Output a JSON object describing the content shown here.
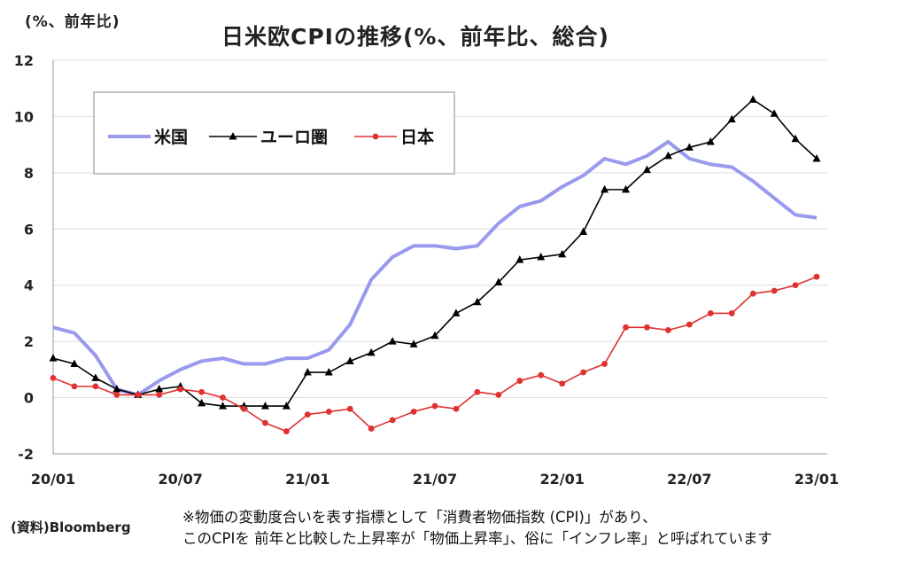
{
  "unit_label": "(%、前年比)",
  "source": "(資料)Bloomberg",
  "footnote": {
    "line1": "※物価の変動度合いを表す指標として「消費者物価指数 (CPI)」があり、",
    "line2": "このCPIを 前年と比較した上昇率が「物価上昇率」、俗に「インフレ率」と呼ばれています"
  },
  "chart_data": {
    "type": "line",
    "title": "日米欧CPIの推移(%、前年比、総合)",
    "xlabel": "",
    "ylabel": "",
    "ylim": [
      -2,
      12
    ],
    "yticks": [
      -2,
      0,
      2,
      4,
      6,
      8,
      10,
      12
    ],
    "x": [
      "20/01",
      "20/02",
      "20/03",
      "20/04",
      "20/05",
      "20/06",
      "20/07",
      "20/08",
      "20/09",
      "20/10",
      "20/11",
      "20/12",
      "21/01",
      "21/02",
      "21/03",
      "21/04",
      "21/05",
      "21/06",
      "21/07",
      "21/08",
      "21/09",
      "21/10",
      "21/11",
      "21/12",
      "22/01",
      "22/02",
      "22/03",
      "22/04",
      "22/05",
      "22/06",
      "22/07",
      "22/08",
      "22/09",
      "22/10",
      "22/11",
      "22/12",
      "23/01"
    ],
    "xtick_labels": [
      "20/01",
      "20/07",
      "21/01",
      "21/07",
      "22/01",
      "22/07",
      "23/01"
    ],
    "xtick_index": [
      0,
      6,
      12,
      18,
      24,
      30,
      36
    ],
    "grid": true,
    "legend_position": "top-left",
    "series": [
      {
        "name": "米国",
        "color": "#9999ee",
        "marker": "none",
        "values": [
          2.5,
          2.3,
          1.5,
          0.3,
          0.1,
          0.6,
          1.0,
          1.3,
          1.4,
          1.2,
          1.2,
          1.4,
          1.4,
          1.7,
          2.6,
          4.2,
          5.0,
          5.4,
          5.4,
          5.3,
          5.4,
          6.2,
          6.8,
          7.0,
          7.5,
          7.9,
          8.5,
          8.3,
          8.6,
          9.1,
          8.5,
          8.3,
          8.2,
          7.7,
          7.1,
          6.5,
          6.4
        ]
      },
      {
        "name": "ユーロ圏",
        "color": "#000000",
        "marker": "triangle",
        "values": [
          1.4,
          1.2,
          0.7,
          0.3,
          0.1,
          0.3,
          0.4,
          -0.2,
          -0.3,
          -0.3,
          -0.3,
          -0.3,
          0.9,
          0.9,
          1.3,
          1.6,
          2.0,
          1.9,
          2.2,
          3.0,
          3.4,
          4.1,
          4.9,
          5.0,
          5.1,
          5.9,
          7.4,
          7.4,
          8.1,
          8.6,
          8.9,
          9.1,
          9.9,
          10.6,
          10.1,
          9.2,
          8.5
        ]
      },
      {
        "name": "日本",
        "color": "#e03030",
        "marker": "circle",
        "values": [
          0.7,
          0.4,
          0.4,
          0.1,
          0.1,
          0.1,
          0.3,
          0.2,
          0.0,
          -0.4,
          -0.9,
          -1.2,
          -0.6,
          -0.5,
          -0.4,
          -1.1,
          -0.8,
          -0.5,
          -0.3,
          -0.4,
          0.2,
          0.1,
          0.6,
          0.8,
          0.5,
          0.9,
          1.2,
          2.5,
          2.5,
          2.4,
          2.6,
          3.0,
          3.0,
          3.7,
          3.8,
          4.0,
          4.3
        ]
      }
    ]
  }
}
